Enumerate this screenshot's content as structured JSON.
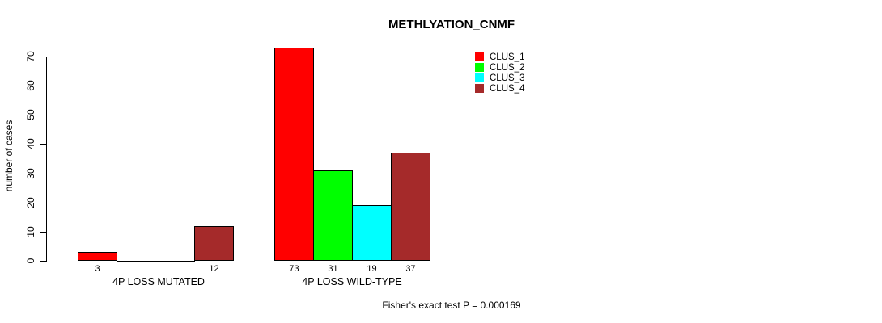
{
  "title": "METHLYATION_CNMF",
  "footer": "Fisher's exact test P = 0.000169",
  "chart_data": {
    "type": "bar",
    "title": "METHLYATION_CNMF",
    "xlabel": "",
    "ylabel": "number of cases",
    "categories": [
      "4P LOSS MUTATED",
      "4P LOSS WILD-TYPE"
    ],
    "series": [
      {
        "name": "CLUS_1",
        "color": "#ff0000",
        "values": [
          3,
          73
        ]
      },
      {
        "name": "CLUS_2",
        "color": "#00ff00",
        "values": [
          0,
          31
        ]
      },
      {
        "name": "CLUS_3",
        "color": "#00ffff",
        "values": [
          0,
          19
        ]
      },
      {
        "name": "CLUS_4",
        "color": "#a52a2a",
        "values": [
          12,
          37
        ]
      }
    ],
    "bar_labels": [
      [
        "3",
        "",
        "",
        "12"
      ],
      [
        "73",
        "31",
        "19",
        "37"
      ]
    ],
    "yticks": [
      0,
      10,
      20,
      30,
      40,
      50,
      60,
      70
    ],
    "ylim": [
      0,
      70
    ],
    "grid": false,
    "bar_border_color": "#000000",
    "legend_position": "top-right",
    "legend": [
      {
        "label": "CLUS_1",
        "color": "#ff0000"
      },
      {
        "label": "CLUS_2",
        "color": "#00ff00"
      },
      {
        "label": "CLUS_3",
        "color": "#00ffff"
      },
      {
        "label": "CLUS_4",
        "color": "#a52a2a"
      }
    ],
    "annotation": "Fisher's exact test P = 0.000169"
  }
}
